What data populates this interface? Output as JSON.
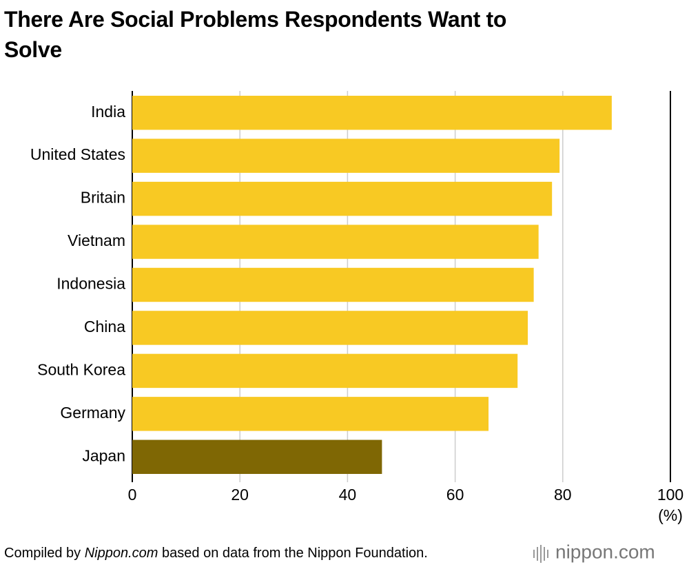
{
  "chart_data": {
    "type": "barh",
    "title": "There Are Social Problems Respondents Want to Solve",
    "categories": [
      "India",
      "United States",
      "Britain",
      "Vietnam",
      "Indonesia",
      "China",
      "South Korea",
      "Germany",
      "Japan"
    ],
    "values": [
      89.1,
      79.4,
      78.0,
      75.5,
      74.6,
      73.5,
      71.6,
      66.2,
      46.4
    ],
    "colors": [
      "#f8c923",
      "#f8c923",
      "#f8c923",
      "#f8c923",
      "#f8c923",
      "#f8c923",
      "#f8c923",
      "#f8c923",
      "#7f6704"
    ],
    "xlim": [
      0,
      100
    ],
    "xticks": [
      0,
      20,
      40,
      60,
      80,
      100
    ],
    "x_unit": "(%)",
    "grid": true,
    "source_prefix": "Compiled by",
    "source_name": "Nippon.com",
    "source_suffix": "based on data from the Nippon Foundation.",
    "logo": "nippon.com"
  }
}
